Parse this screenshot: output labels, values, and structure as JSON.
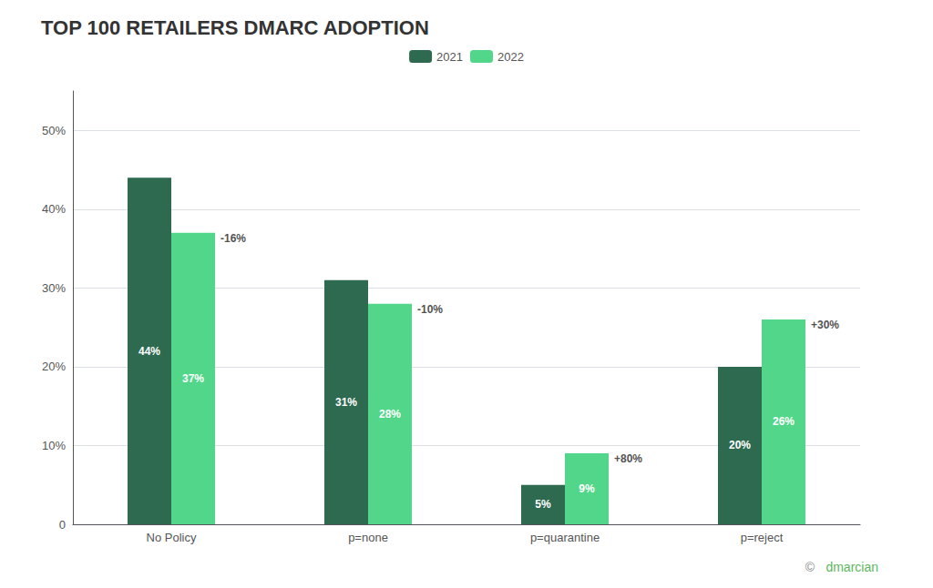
{
  "chart_data": {
    "type": "bar",
    "title": "TOP 100 RETAILERS DMARC ADOPTION",
    "categories": [
      "No Policy",
      "p=none",
      "p=quarantine",
      "p=reject"
    ],
    "series": [
      {
        "name": "2021",
        "color": "#2d6a4f",
        "values": [
          44,
          31,
          5,
          20
        ],
        "value_labels": [
          "44%",
          "31%",
          "5%",
          "20%"
        ]
      },
      {
        "name": "2022",
        "color": "#52d68a",
        "values": [
          37,
          28,
          9,
          26
        ],
        "value_labels": [
          "37%",
          "28%",
          "9%",
          "26%"
        ],
        "annotations": [
          "-16%",
          "-10%",
          "+80%",
          "+30%"
        ]
      }
    ],
    "ylim": [
      0,
      55
    ],
    "yticks": [
      0,
      {
        "value": 10,
        "label": "10%"
      },
      {
        "value": 20,
        "label": "20%"
      },
      {
        "value": 30,
        "label": "30%"
      },
      {
        "value": 40,
        "label": "40%"
      },
      {
        "value": 50,
        "label": "50%"
      }
    ],
    "grid": true,
    "legend": "top",
    "data_labels": true,
    "annotations": [
      {
        "text": "©",
        "color": "#888888"
      },
      {
        "text": "dmarcian",
        "color": "#5cb85c"
      }
    ]
  }
}
